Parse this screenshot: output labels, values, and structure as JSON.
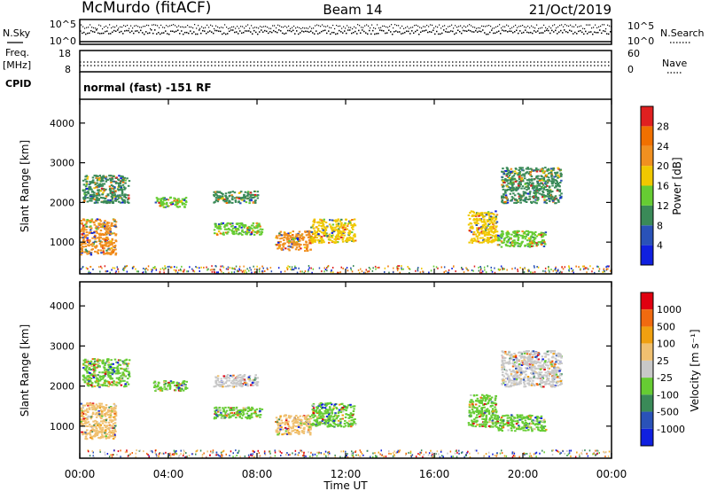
{
  "header": {
    "station": "McMurdo (fitACF)",
    "beam": "Beam 14",
    "date": "21/Oct/2019"
  },
  "top_panel": {
    "left_label": "N.Sky",
    "right_label": "N.Search",
    "left_ticks": [
      "10^5",
      "10^0"
    ],
    "right_ticks": [
      "10^5",
      "10^0"
    ]
  },
  "freq_panel": {
    "left_label_1": "Freq.",
    "left_label_2": "[MHz]",
    "left_ticks": [
      "18",
      "8"
    ],
    "right_ticks": [
      "60",
      "0"
    ],
    "right_label": "Nave",
    "cpid_label": "CPID",
    "cpid_text": "normal (fast) -151 RF"
  },
  "colors": {
    "power": [
      "#1020e0",
      "#2a52b8",
      "#3a8a58",
      "#66cc33",
      "#f0c800",
      "#f09020",
      "#f07000",
      "#e02020"
    ],
    "velocity": [
      "#e00010",
      "#f06a10",
      "#f0a010",
      "#f0c070",
      "#c8c8c8",
      "#66cc33",
      "#3a8a58",
      "#2a52b8",
      "#1020e0"
    ]
  },
  "chart_data": [
    {
      "type": "heatmap",
      "ylabel": "Slant Range [km]",
      "yticks": [
        "1000",
        "2000",
        "3000",
        "4000"
      ],
      "xticks": [
        "00:00",
        "04:00",
        "08:00",
        "12:00",
        "16:00",
        "20:00",
        "00:00"
      ],
      "ylim": [
        200,
        4600
      ],
      "xlim": [
        0,
        24
      ],
      "colorbar": {
        "label": "Power [dB]",
        "ticks": [
          "4",
          "8",
          "12",
          "16",
          "20",
          "24",
          "28"
        ],
        "range": [
          0,
          32
        ]
      },
      "patches": [
        {
          "t0": 0.0,
          "t1": 1.6,
          "r0": 700,
          "r1": 1600,
          "level": 20
        },
        {
          "t0": 0.1,
          "t1": 2.2,
          "r0": 2000,
          "r1": 2700,
          "level": 9
        },
        {
          "t0": 3.3,
          "t1": 4.8,
          "r0": 1900,
          "r1": 2150,
          "level": 13
        },
        {
          "t0": 6.0,
          "t1": 8.0,
          "r0": 2000,
          "r1": 2300,
          "level": 9
        },
        {
          "t0": 6.0,
          "t1": 8.2,
          "r0": 1200,
          "r1": 1500,
          "level": 14
        },
        {
          "t0": 8.8,
          "t1": 10.4,
          "r0": 800,
          "r1": 1300,
          "level": 22
        },
        {
          "t0": 10.4,
          "t1": 12.4,
          "r0": 1000,
          "r1": 1600,
          "level": 18
        },
        {
          "t0": 17.5,
          "t1": 18.8,
          "r0": 1000,
          "r1": 1800,
          "level": 16
        },
        {
          "t0": 18.8,
          "t1": 21.0,
          "r0": 900,
          "r1": 1300,
          "level": 14
        },
        {
          "t0": 19.0,
          "t1": 21.7,
          "r0": 2000,
          "r1": 2900,
          "level": 8
        }
      ]
    },
    {
      "type": "heatmap",
      "ylabel": "Slant Range [km]",
      "yticks": [
        "1000",
        "2000",
        "3000",
        "4000"
      ],
      "xticks": [
        "00:00",
        "04:00",
        "08:00",
        "12:00",
        "16:00",
        "20:00",
        "00:00"
      ],
      "xlabel": "Time UT",
      "ylim": [
        200,
        4600
      ],
      "xlim": [
        0,
        24
      ],
      "colorbar": {
        "label": "Velocity [m s⁻¹]",
        "ticks": [
          "1000",
          "500",
          "100",
          "25",
          "-25",
          "-100",
          "-500",
          "-1000"
        ],
        "range": [
          -1000,
          1000
        ]
      },
      "patches": [
        {
          "t0": 0.0,
          "t1": 1.6,
          "r0": 700,
          "r1": 1600,
          "level": 200
        },
        {
          "t0": 0.1,
          "t1": 2.2,
          "r0": 2000,
          "r1": 2700,
          "level": -200
        },
        {
          "t0": 3.3,
          "t1": 4.8,
          "r0": 1900,
          "r1": 2150,
          "level": -300
        },
        {
          "t0": 6.0,
          "t1": 8.0,
          "r0": 2000,
          "r1": 2300,
          "level": 0
        },
        {
          "t0": 6.0,
          "t1": 8.2,
          "r0": 1200,
          "r1": 1500,
          "level": -300
        },
        {
          "t0": 8.8,
          "t1": 10.4,
          "r0": 800,
          "r1": 1300,
          "level": 300
        },
        {
          "t0": 10.4,
          "t1": 12.4,
          "r0": 1000,
          "r1": 1600,
          "level": -300
        },
        {
          "t0": 17.5,
          "t1": 18.8,
          "r0": 1000,
          "r1": 1800,
          "level": -200
        },
        {
          "t0": 18.8,
          "t1": 21.0,
          "r0": 900,
          "r1": 1300,
          "level": -300
        },
        {
          "t0": 19.0,
          "t1": 21.7,
          "r0": 2000,
          "r1": 2900,
          "level": 0
        }
      ]
    }
  ]
}
